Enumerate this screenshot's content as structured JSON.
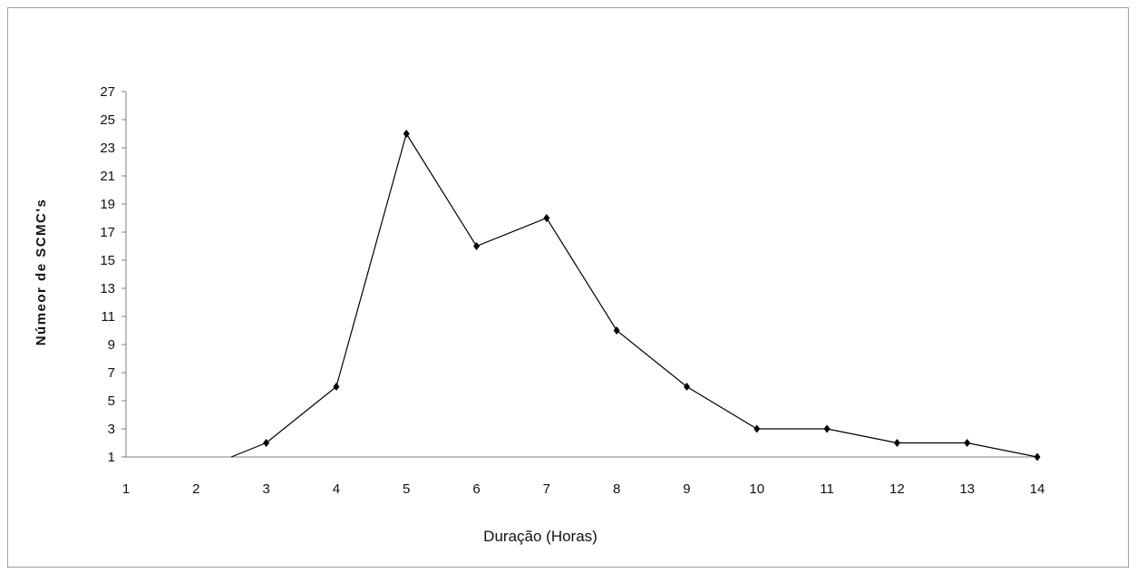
{
  "chart_data": {
    "type": "line",
    "title": "",
    "xlabel": "Duração (Horas)",
    "ylabel": "Númeor de SCMC's",
    "x_ticks": [
      "1",
      "2",
      "3",
      "4",
      "5",
      "6",
      "7",
      "8",
      "9",
      "10",
      "11",
      "12",
      "13",
      "14"
    ],
    "y_ticks": [
      "1",
      "3",
      "5",
      "7",
      "9",
      "11",
      "13",
      "15",
      "17",
      "19",
      "21",
      "23",
      "25",
      "27"
    ],
    "xlim": [
      1,
      14
    ],
    "ylim": [
      1,
      27
    ],
    "grid": false,
    "legend": "none",
    "line_color": "#000000",
    "series": [
      {
        "x": [
          2.5,
          3,
          4,
          5,
          6,
          7,
          8,
          9,
          10,
          11,
          12,
          13,
          14
        ],
        "y": [
          1,
          2,
          6,
          24,
          16,
          18,
          10,
          6,
          3,
          3,
          2,
          2,
          1
        ]
      }
    ]
  }
}
